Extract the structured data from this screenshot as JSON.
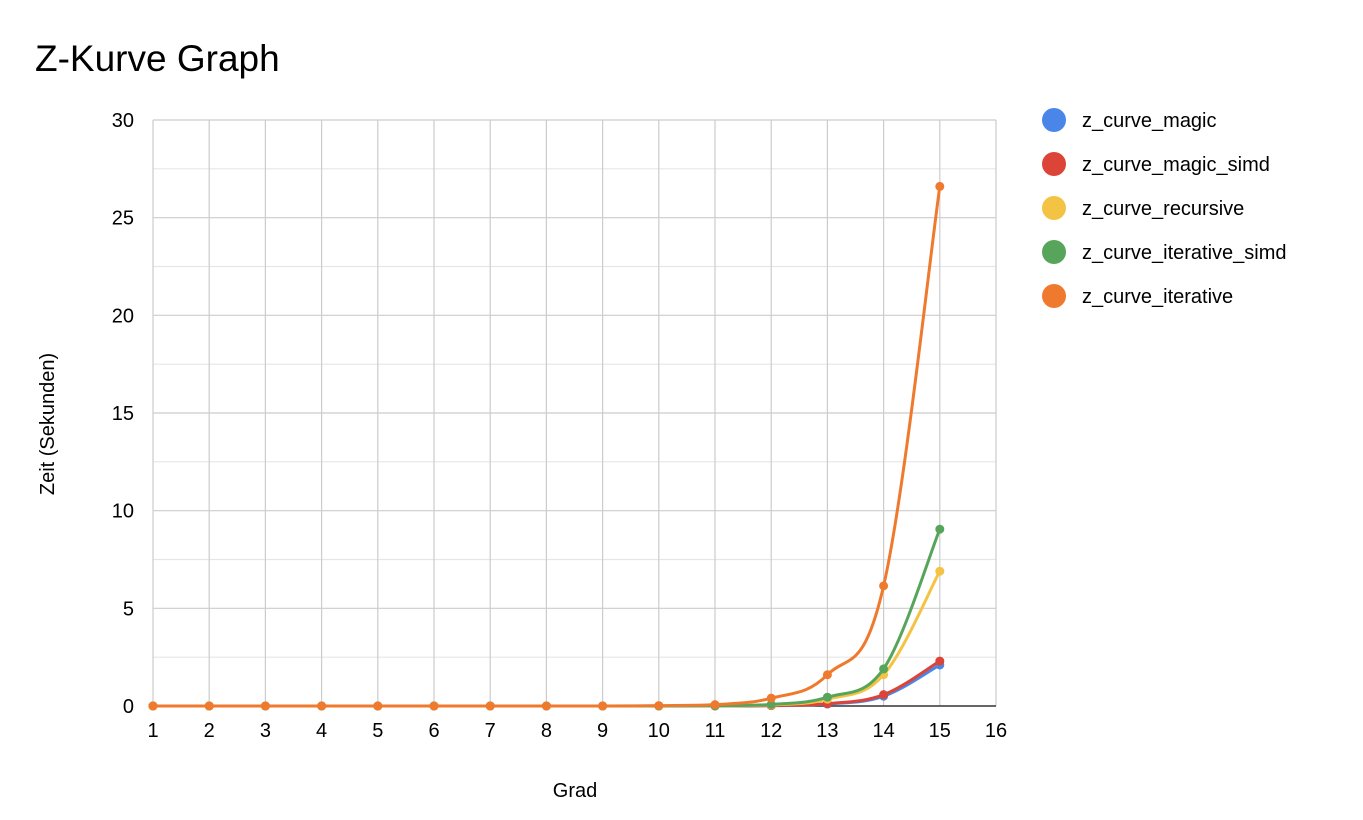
{
  "chart_data": {
    "type": "line",
    "title": "Z-Kurve Graph",
    "xlabel": "Grad",
    "ylabel": "Zeit (Sekunden)",
    "xlim": [
      1,
      16
    ],
    "ylim": [
      0,
      30
    ],
    "x_ticks": [
      "1",
      "2",
      "3",
      "4",
      "5",
      "6",
      "7",
      "8",
      "9",
      "10",
      "11",
      "12",
      "13",
      "14",
      "15",
      "16"
    ],
    "y_ticks": [
      "0",
      "5",
      "10",
      "15",
      "20",
      "25",
      "30"
    ],
    "grid": true,
    "legend_position": "right",
    "x": [
      1,
      2,
      3,
      4,
      5,
      6,
      7,
      8,
      9,
      10,
      11,
      12,
      13,
      14,
      15
    ],
    "series": [
      {
        "name": "z_curve_magic",
        "color": "#4a86e8",
        "values": [
          0,
          0,
          0,
          0,
          0,
          0,
          0,
          0,
          0,
          0,
          0.005,
          0.02,
          0.1,
          0.5,
          2.1
        ]
      },
      {
        "name": "z_curve_magic_simd",
        "color": "#db4437",
        "values": [
          0,
          0,
          0,
          0,
          0,
          0,
          0,
          0,
          0,
          0,
          0.005,
          0.02,
          0.12,
          0.58,
          2.3
        ]
      },
      {
        "name": "z_curve_recursive",
        "color": "#f4c343",
        "values": [
          0,
          0,
          0,
          0,
          0,
          0,
          0,
          0,
          0,
          0,
          0.01,
          0.05,
          0.35,
          1.6,
          6.9
        ]
      },
      {
        "name": "z_curve_iterative_simd",
        "color": "#57a55a",
        "values": [
          0,
          0,
          0,
          0,
          0,
          0,
          0,
          0,
          0,
          0,
          0.01,
          0.08,
          0.45,
          1.9,
          9.05
        ]
      },
      {
        "name": "z_curve_iterative",
        "color": "#ef7a2e",
        "values": [
          0,
          0,
          0,
          0,
          0,
          0,
          0,
          0,
          0,
          0.02,
          0.07,
          0.4,
          1.6,
          6.15,
          26.6
        ]
      }
    ]
  }
}
